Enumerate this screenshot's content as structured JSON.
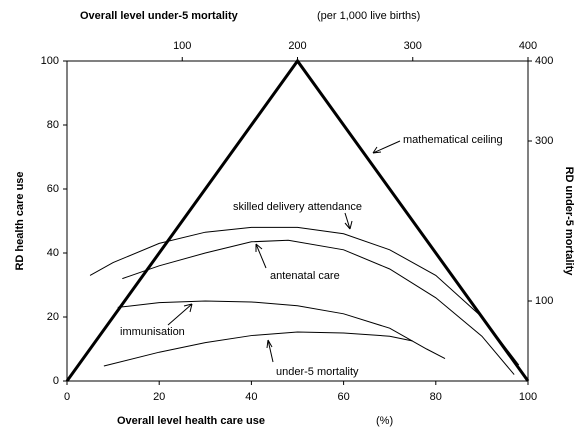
{
  "chart_data": {
    "type": "line",
    "x_label": "Overall level health care use",
    "x_label_unit": "(%)",
    "x2_label": "Overall level under-5 mortality",
    "x2_label_unit": "(per 1,000 live births)",
    "y_label": "RD health care use",
    "y2_label": "RD under-5 mortality",
    "xlim": [
      0,
      100
    ],
    "xticks": [
      0,
      20,
      40,
      60,
      80,
      100
    ],
    "x2lim": [
      0,
      400
    ],
    "x2ticks": [
      100,
      200,
      300,
      400
    ],
    "ylim": [
      0,
      100
    ],
    "yticks": [
      0,
      20,
      40,
      60,
      80,
      100
    ],
    "y2lim": [
      0,
      400
    ],
    "y2ticks": [
      100,
      300,
      400
    ],
    "series": [
      {
        "name": "mathematical ceiling",
        "color": "#000000",
        "line_width": 3,
        "x": [
          0,
          50,
          100
        ],
        "values": [
          0,
          100,
          0
        ]
      },
      {
        "name": "skilled delivery attendance",
        "color": "#000000",
        "line_width": 1,
        "x": [
          5,
          10,
          20,
          30,
          40,
          50,
          60,
          70,
          80,
          90,
          98
        ],
        "values": [
          33,
          37,
          43,
          46.5,
          48,
          48,
          46,
          41,
          33,
          20,
          5
        ]
      },
      {
        "name": "antenatal care",
        "color": "#000000",
        "line_width": 1,
        "x": [
          12,
          20,
          30,
          40,
          48,
          60,
          70,
          80,
          90,
          97
        ],
        "values": [
          32,
          36,
          40,
          43.5,
          44,
          41,
          35,
          26,
          14,
          2
        ]
      },
      {
        "name": "immunisation",
        "color": "#000000",
        "line_width": 1,
        "x": [
          11,
          20,
          30,
          40,
          50,
          60,
          70,
          78,
          82
        ],
        "values": [
          23,
          24.5,
          25,
          24.7,
          23.5,
          21,
          16.5,
          10,
          7
        ]
      },
      {
        "name": "under-5 mortality",
        "color": "#000000",
        "line_width": 1,
        "x": [
          8,
          20,
          30,
          40,
          50,
          60,
          70,
          75
        ],
        "values": [
          4.7,
          9,
          12,
          14.2,
          15.3,
          15,
          14,
          12.5
        ]
      }
    ]
  }
}
